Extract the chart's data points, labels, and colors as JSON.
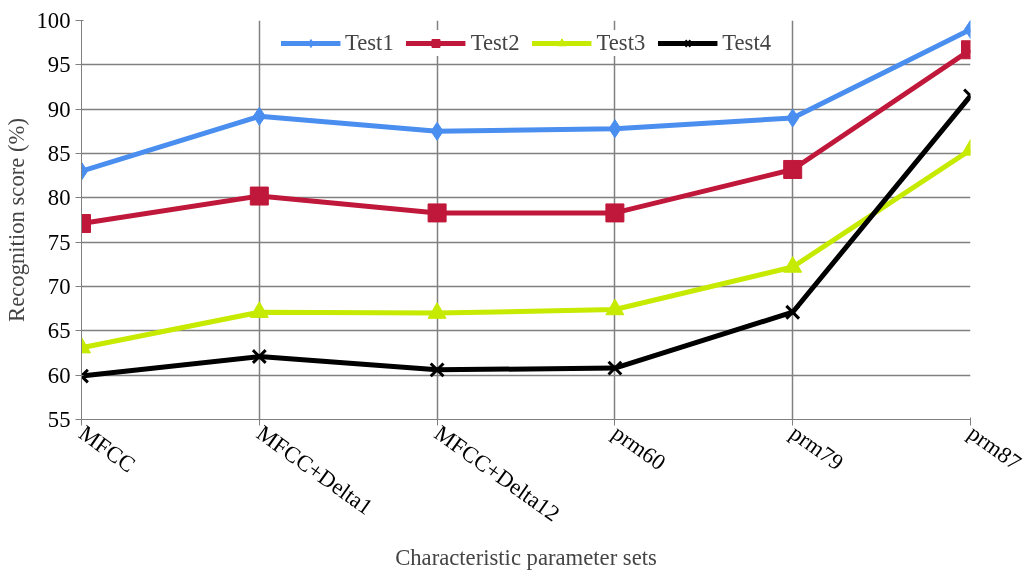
{
  "chart_data": {
    "type": "line",
    "xlabel": "Characteristic parameter sets",
    "ylabel": "Recognition score (%)",
    "categories": [
      "MFCC",
      "MFCC+Delta1",
      "MFCC+Delta12",
      "prm60",
      "prm79",
      "prm87"
    ],
    "series": [
      {
        "name": "Test1",
        "color": "#4a8ef0",
        "marker": "diamond",
        "values": [
          83.0,
          89.2,
          87.5,
          87.8,
          89.0,
          99.0
        ]
      },
      {
        "name": "Test2",
        "color": "#c0183a",
        "marker": "square",
        "values": [
          77.1,
          80.2,
          78.3,
          78.3,
          83.2,
          96.7
        ]
      },
      {
        "name": "Test3",
        "color": "#c6ea00",
        "marker": "triangle",
        "values": [
          63.1,
          67.1,
          67.0,
          67.4,
          72.2,
          85.4
        ]
      },
      {
        "name": "Test4",
        "color": "#000000",
        "marker": "cross",
        "values": [
          59.9,
          62.1,
          60.6,
          60.8,
          67.1,
          91.5
        ]
      }
    ],
    "ylim": [
      55,
      100
    ],
    "yticks": [
      55,
      60,
      65,
      70,
      75,
      80,
      85,
      90,
      95,
      100
    ],
    "grid": true,
    "legend": "top",
    "line_style": "solid"
  }
}
